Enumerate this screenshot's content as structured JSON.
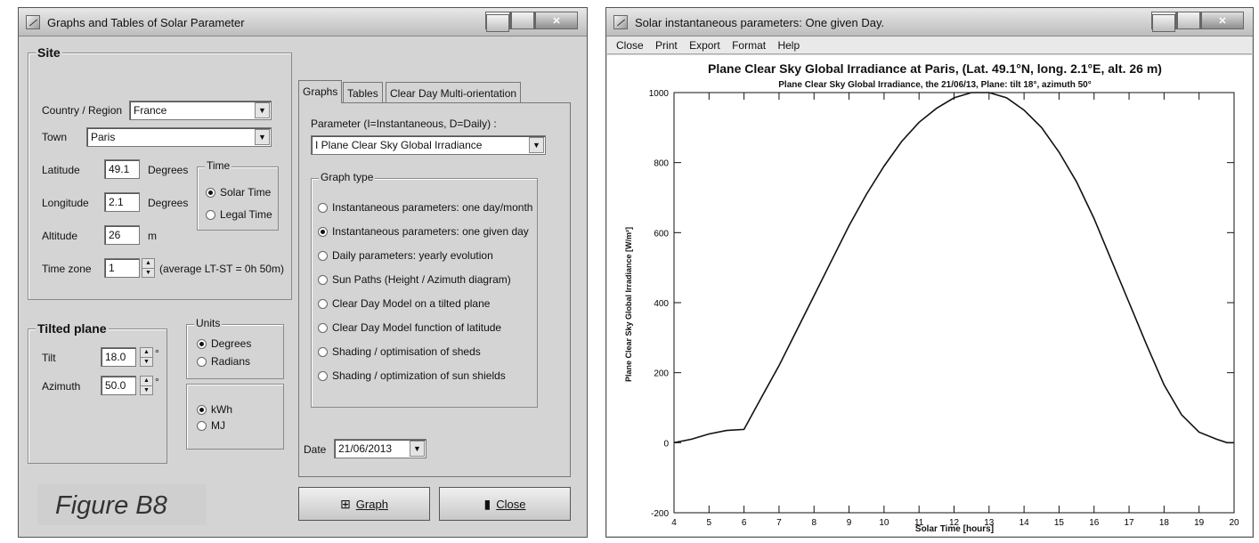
{
  "left_window": {
    "title": "Graphs and Tables of Solar Parameter",
    "site": {
      "title": "Site",
      "country_label": "Country / Region",
      "country_value": "France",
      "town_label": "Town",
      "town_value": "Paris",
      "latitude_label": "Latitude",
      "latitude_value": "49.1",
      "latitude_unit": "Degrees",
      "longitude_label": "Longitude",
      "longitude_value": "2.1",
      "longitude_unit": "Degrees",
      "altitude_label": "Altitude",
      "altitude_value": "26",
      "altitude_unit": "m",
      "timezone_label": "Time zone",
      "timezone_value": "1",
      "timezone_note": "(average LT-ST =  0h 50m)",
      "time_group_title": "Time",
      "time_options": [
        "Solar Time",
        "Legal Time"
      ],
      "time_selected": "Solar Time"
    },
    "tilted_plane": {
      "title": "Tilted plane",
      "tilt_label": "Tilt",
      "tilt_value": "18.0",
      "azimuth_label": "Azimuth",
      "azimuth_value": "50.0",
      "degree_symbol": "°",
      "units_title": "Units",
      "units_options": [
        "Degrees",
        "Radians"
      ],
      "units_selected": "Degrees",
      "energy_options": [
        "kWh",
        "MJ"
      ],
      "energy_selected": "kWh"
    },
    "tabs": [
      "Graphs",
      "Tables",
      "Clear Day Multi-orientation"
    ],
    "active_tab": "Graphs",
    "parameter_label": "Parameter  (I=Instantaneous,  D=Daily) :",
    "parameter_value": "I  Plane Clear Sky Global Irradiance",
    "graph_type": {
      "title": "Graph type",
      "options": [
        "Instantaneous parameters: one day/month",
        "Instantaneous parameters: one given day",
        "Daily parameters: yearly evolution",
        "Sun Paths  (Height / Azimuth diagram)",
        "Clear Day Model on a tilted plane",
        "Clear Day Model function of latitude",
        "Shading / optimisation of sheds",
        "Shading / optimization of sun shields"
      ],
      "selected_index": 1
    },
    "date_label": "Date",
    "date_value": "21/06/2013",
    "graph_button": "Graph",
    "close_button": "Close",
    "figure_label": "Figure B8"
  },
  "right_window": {
    "title": "Solar instantaneous parameters: One given Day.",
    "menu": [
      "Close",
      "Print",
      "Export",
      "Format",
      "Help"
    ]
  },
  "chart_data": {
    "type": "line",
    "title": "Plane Clear Sky Global Irradiance  at  Paris, (Lat. 49.1°N, long. 2.1°E, alt. 26 m)",
    "subtitle": "Plane Clear Sky Global Irradiance, the  21/06/13,  Plane: tilt 18°, azimuth 50°",
    "xlabel": "Solar Time [hours]",
    "ylabel": "Plane Clear Sky Global Irradiance  [W/m²]",
    "xlim": [
      4,
      20
    ],
    "ylim": [
      -200,
      1000
    ],
    "xticks": [
      4,
      5,
      6,
      7,
      8,
      9,
      10,
      11,
      12,
      13,
      14,
      15,
      16,
      17,
      18,
      19,
      20
    ],
    "yticks": [
      -200,
      0,
      200,
      400,
      600,
      800,
      1000
    ],
    "grid": false,
    "series": [
      {
        "x": [
          4.0,
          4.5,
          5.0,
          5.5,
          6.0,
          6.5,
          7.0,
          7.5,
          8.0,
          8.5,
          9.0,
          9.5,
          10.0,
          10.5,
          11.0,
          11.5,
          12.0,
          12.5,
          13.0,
          13.5,
          14.0,
          14.5,
          15.0,
          15.5,
          16.0,
          16.5,
          17.0,
          17.5,
          18.0,
          18.5,
          19.0,
          19.5,
          19.8,
          20.0
        ],
        "y": [
          0,
          10,
          25,
          35,
          38,
          130,
          220,
          320,
          420,
          520,
          620,
          710,
          790,
          860,
          915,
          955,
          985,
          1000,
          1000,
          985,
          950,
          900,
          830,
          745,
          640,
          520,
          400,
          280,
          165,
          80,
          30,
          10,
          0,
          0
        ]
      }
    ]
  }
}
